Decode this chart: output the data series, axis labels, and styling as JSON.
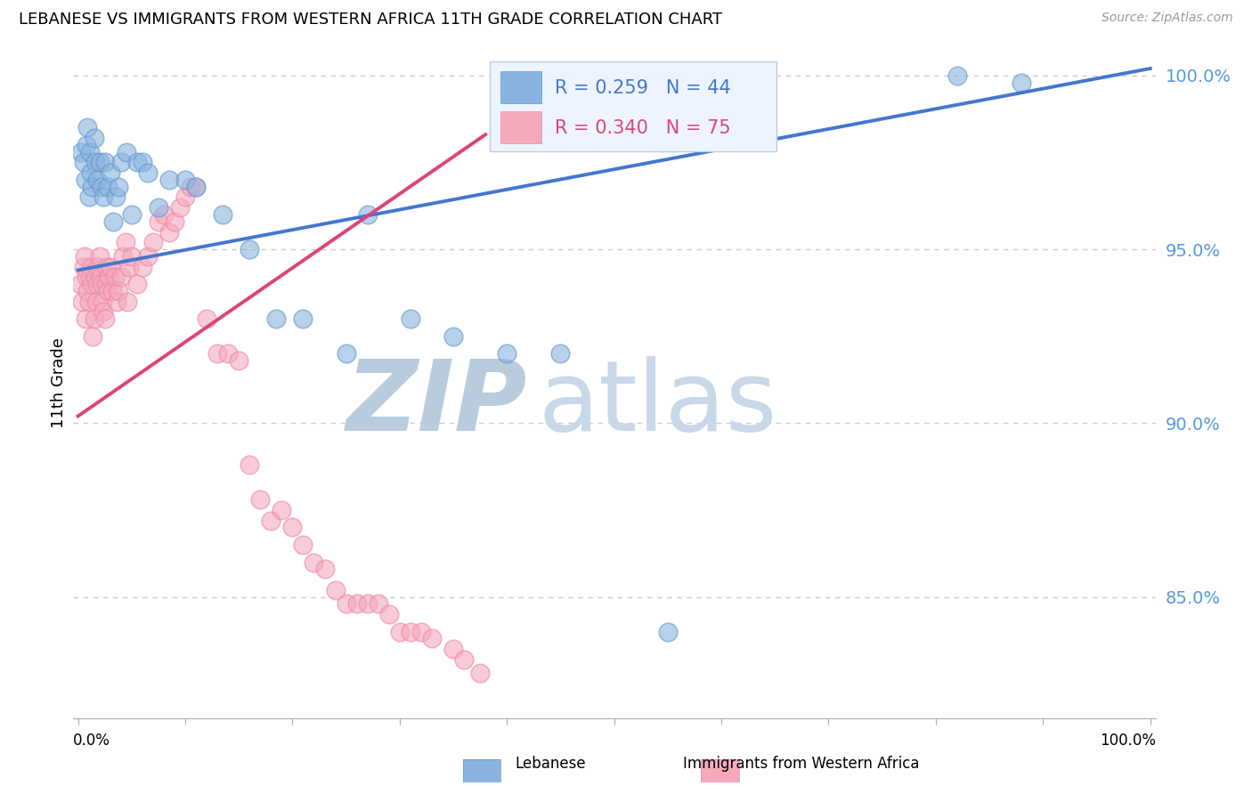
{
  "title": "LEBANESE VS IMMIGRANTS FROM WESTERN AFRICA 11TH GRADE CORRELATION CHART",
  "source": "Source: ZipAtlas.com",
  "ylabel": "11th Grade",
  "legend_blue_r": "R = 0.259",
  "legend_blue_n": "N = 44",
  "legend_pink_r": "R = 0.340",
  "legend_pink_n": "N = 75",
  "blue_color": "#8AB4E0",
  "blue_edge_color": "#6699CC",
  "pink_color": "#F4AABB",
  "pink_edge_color": "#EE88AA",
  "trend_blue_color": "#4477CC",
  "trend_pink_color": "#DD4477",
  "watermark_zip": "ZIP",
  "watermark_atlas": "atlas",
  "watermark_color": "#D0DFF0",
  "ytick_color": "#5599DD",
  "ymin": 0.815,
  "ymax": 1.008,
  "xmin": -0.005,
  "xmax": 1.005,
  "ytick_vals": [
    0.85,
    0.9,
    0.95,
    1.0
  ],
  "ytick_labels": [
    "85.0%",
    "90.0%",
    "95.0%",
    "100.0%"
  ],
  "blue_trend_x0": 0.0,
  "blue_trend_x1": 1.0,
  "blue_trend_y0": 0.944,
  "blue_trend_y1": 1.002,
  "pink_trend_x0": 0.0,
  "pink_trend_x1": 0.38,
  "pink_trend_y0": 0.902,
  "pink_trend_y1": 0.983,
  "blue_x": [
    0.003,
    0.005,
    0.007,
    0.008,
    0.009,
    0.01,
    0.011,
    0.012,
    0.013,
    0.015,
    0.016,
    0.018,
    0.02,
    0.022,
    0.024,
    0.025,
    0.028,
    0.03,
    0.033,
    0.035,
    0.038,
    0.04,
    0.045,
    0.05,
    0.055,
    0.06,
    0.065,
    0.075,
    0.085,
    0.1,
    0.11,
    0.135,
    0.16,
    0.185,
    0.21,
    0.25,
    0.27,
    0.31,
    0.35,
    0.4,
    0.45,
    0.55,
    0.82,
    0.88
  ],
  "blue_y": [
    0.978,
    0.975,
    0.97,
    0.98,
    0.985,
    0.965,
    0.978,
    0.972,
    0.968,
    0.982,
    0.975,
    0.97,
    0.975,
    0.968,
    0.965,
    0.975,
    0.968,
    0.972,
    0.958,
    0.965,
    0.968,
    0.975,
    0.978,
    0.96,
    0.975,
    0.975,
    0.972,
    0.962,
    0.97,
    0.97,
    0.968,
    0.96,
    0.95,
    0.93,
    0.93,
    0.92,
    0.96,
    0.93,
    0.925,
    0.92,
    0.92,
    0.84,
    1.0,
    0.998
  ],
  "pink_x": [
    0.002,
    0.004,
    0.005,
    0.006,
    0.007,
    0.008,
    0.009,
    0.01,
    0.011,
    0.012,
    0.013,
    0.014,
    0.015,
    0.016,
    0.017,
    0.018,
    0.019,
    0.02,
    0.021,
    0.022,
    0.023,
    0.024,
    0.025,
    0.026,
    0.027,
    0.028,
    0.029,
    0.03,
    0.032,
    0.034,
    0.036,
    0.038,
    0.04,
    0.042,
    0.044,
    0.046,
    0.048,
    0.05,
    0.055,
    0.06,
    0.065,
    0.07,
    0.075,
    0.08,
    0.085,
    0.09,
    0.095,
    0.1,
    0.105,
    0.11,
    0.12,
    0.13,
    0.14,
    0.15,
    0.16,
    0.17,
    0.18,
    0.19,
    0.2,
    0.21,
    0.22,
    0.23,
    0.24,
    0.25,
    0.26,
    0.27,
    0.28,
    0.29,
    0.3,
    0.31,
    0.32,
    0.33,
    0.35,
    0.36,
    0.375
  ],
  "pink_y": [
    0.94,
    0.935,
    0.945,
    0.948,
    0.93,
    0.942,
    0.938,
    0.935,
    0.942,
    0.945,
    0.94,
    0.925,
    0.93,
    0.942,
    0.935,
    0.94,
    0.945,
    0.948,
    0.942,
    0.94,
    0.935,
    0.932,
    0.93,
    0.94,
    0.945,
    0.938,
    0.942,
    0.945,
    0.938,
    0.942,
    0.935,
    0.938,
    0.942,
    0.948,
    0.952,
    0.935,
    0.945,
    0.948,
    0.94,
    0.945,
    0.948,
    0.952,
    0.958,
    0.96,
    0.955,
    0.958,
    0.962,
    0.965,
    0.968,
    0.968,
    0.93,
    0.92,
    0.92,
    0.918,
    0.888,
    0.878,
    0.872,
    0.875,
    0.87,
    0.865,
    0.86,
    0.858,
    0.852,
    0.848,
    0.848,
    0.848,
    0.848,
    0.845,
    0.84,
    0.84,
    0.84,
    0.838,
    0.835,
    0.832,
    0.828
  ]
}
